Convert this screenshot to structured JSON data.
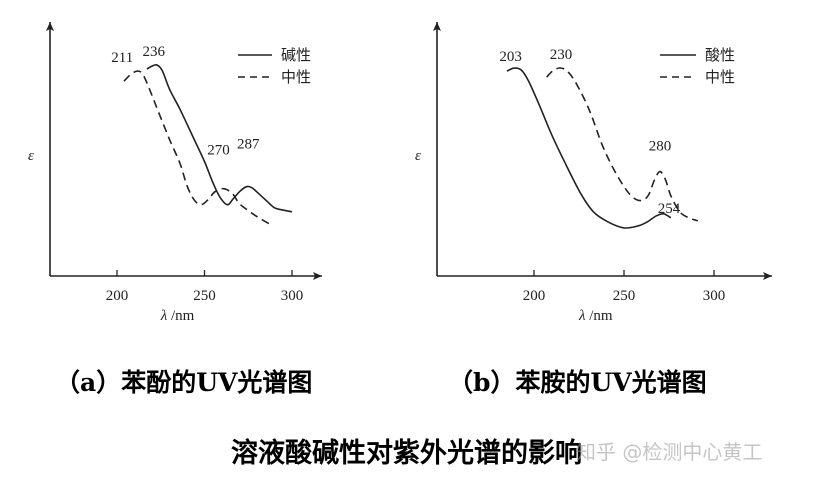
{
  "chart_data": [
    {
      "type": "line",
      "xlabel_symbol": "λ",
      "xlabel_unit": "/nm",
      "ylabel": "ε",
      "xticks": [
        200,
        250,
        300
      ],
      "xlim": [
        180,
        310
      ],
      "ylim": [
        0,
        1
      ],
      "legend_position": "top-right",
      "series": [
        {
          "name": "碱性",
          "style": "solid",
          "points": [
            [
              217,
              0.93
            ],
            [
              220,
              0.945
            ],
            [
              223,
              0.95
            ],
            [
              226,
              0.92
            ],
            [
              230,
              0.83
            ],
            [
              236,
              0.73
            ],
            [
              243,
              0.6
            ],
            [
              250,
              0.47
            ],
            [
              255,
              0.36
            ],
            [
              259,
              0.29
            ],
            [
              263,
              0.255
            ],
            [
              266,
              0.28
            ],
            [
              270,
              0.32
            ],
            [
              274,
              0.345
            ],
            [
              277,
              0.34
            ],
            [
              281,
              0.31
            ],
            [
              286,
              0.27
            ],
            [
              290,
              0.24
            ],
            [
              294,
              0.23
            ],
            [
              300,
              0.22
            ]
          ]
        },
        {
          "name": "中性",
          "style": "dashed",
          "points": [
            [
              204,
              0.87
            ],
            [
              208,
              0.905
            ],
            [
              212,
              0.92
            ],
            [
              215,
              0.9
            ],
            [
              219,
              0.82
            ],
            [
              224,
              0.71
            ],
            [
              230,
              0.58
            ],
            [
              236,
              0.46
            ],
            [
              240,
              0.35
            ],
            [
              244,
              0.28
            ],
            [
              248,
              0.255
            ],
            [
              252,
              0.28
            ],
            [
              256,
              0.32
            ],
            [
              261,
              0.335
            ],
            [
              266,
              0.31
            ],
            [
              270,
              0.26
            ],
            [
              276,
              0.22
            ],
            [
              281,
              0.19
            ],
            [
              287,
              0.16
            ]
          ]
        }
      ],
      "annotations": [
        {
          "text": "211",
          "x": 203,
          "y": 0.965
        },
        {
          "text": "236",
          "x": 221,
          "y": 0.995
        },
        {
          "text": "270",
          "x": 258,
          "y": 0.505
        },
        {
          "text": "287",
          "x": 275,
          "y": 0.535
        }
      ]
    },
    {
      "type": "line",
      "xlabel_symbol": "λ",
      "xlabel_unit": "/nm",
      "ylabel": "ε",
      "xticks": [
        200,
        250,
        300
      ],
      "xlim": [
        175,
        310
      ],
      "ylim": [
        0,
        1
      ],
      "legend_position": "top-right",
      "series": [
        {
          "name": "酸性",
          "style": "solid",
          "points": [
            [
              185,
              0.92
            ],
            [
              189,
              0.935
            ],
            [
              193,
              0.925
            ],
            [
              197,
              0.87
            ],
            [
              203,
              0.75
            ],
            [
              210,
              0.6
            ],
            [
              218,
              0.45
            ],
            [
              226,
              0.31
            ],
            [
              233,
              0.22
            ],
            [
              241,
              0.17
            ],
            [
              250,
              0.14
            ],
            [
              258,
              0.15
            ],
            [
              263,
              0.17
            ],
            [
              268,
              0.2
            ],
            [
              272,
              0.21
            ],
            [
              276,
              0.19
            ]
          ]
        },
        {
          "name": "中性",
          "style": "dashed",
          "points": [
            [
              207,
              0.89
            ],
            [
              211,
              0.925
            ],
            [
              215,
              0.935
            ],
            [
              219,
              0.915
            ],
            [
              224,
              0.85
            ],
            [
              231,
              0.72
            ],
            [
              238,
              0.55
            ],
            [
              245,
              0.42
            ],
            [
              252,
              0.32
            ],
            [
              257,
              0.28
            ],
            [
              261,
              0.28
            ],
            [
              264,
              0.31
            ],
            [
              267,
              0.38
            ],
            [
              270,
              0.42
            ],
            [
              273,
              0.38
            ],
            [
              276,
              0.3
            ],
            [
              281,
              0.22
            ],
            [
              286,
              0.19
            ],
            [
              291,
              0.175
            ]
          ]
        }
      ],
      "annotations": [
        {
          "text": "203",
          "x": 187,
          "y": 0.97
        },
        {
          "text": "230",
          "x": 215,
          "y": 0.98
        },
        {
          "text": "280",
          "x": 270,
          "y": 0.525
        },
        {
          "text": "254",
          "x": 275,
          "y": 0.215
        }
      ]
    }
  ],
  "captions": {
    "a": "（a）苯酚的UV光谱图",
    "b": "（b）苯胺的UV光谱图"
  },
  "title": "溶液酸碱性对紫外光谱的影响",
  "watermark": "知乎 @检测中心黄工"
}
